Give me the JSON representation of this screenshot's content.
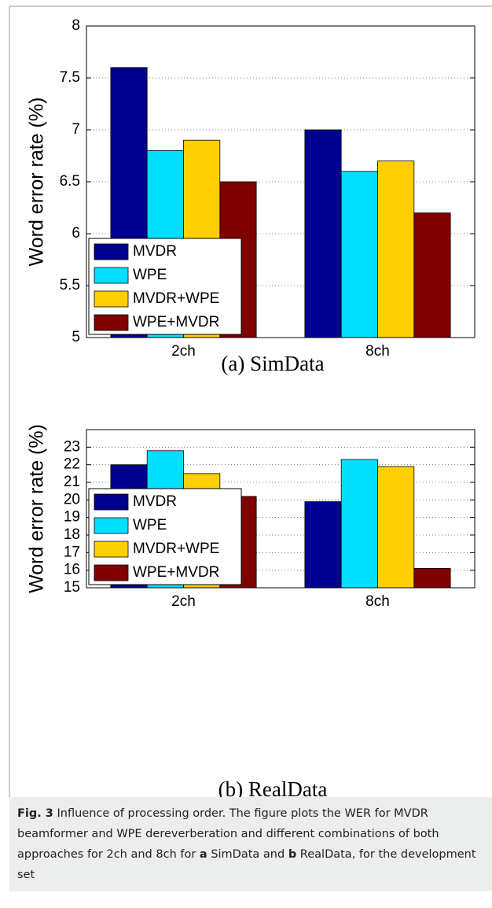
{
  "chart_data": [
    {
      "type": "bar",
      "title": "(a) SimData",
      "ylabel": "Word error rate (%)",
      "categories": [
        "2ch",
        "8ch"
      ],
      "series": [
        {
          "name": "MVDR",
          "color": "#00008f",
          "values": [
            7.6,
            7.0
          ]
        },
        {
          "name": "WPE",
          "color": "#00dfff",
          "values": [
            6.8,
            6.6
          ]
        },
        {
          "name": "MVDR+WPE",
          "color": "#ffcf00",
          "values": [
            6.9,
            6.7
          ]
        },
        {
          "name": "WPE+MVDR",
          "color": "#800000",
          "values": [
            6.5,
            6.2
          ]
        }
      ],
      "ylim": [
        5,
        8
      ],
      "yticks": [
        5,
        5.5,
        6,
        6.5,
        7,
        7.5,
        8
      ],
      "grid": true,
      "legend": "upper left"
    },
    {
      "type": "bar",
      "title": "(b) RealData",
      "ylabel": "Word error rate (%)",
      "categories": [
        "2ch",
        "8ch"
      ],
      "series": [
        {
          "name": "MVDR",
          "color": "#00008f",
          "values": [
            22.0,
            19.9
          ]
        },
        {
          "name": "WPE",
          "color": "#00dfff",
          "values": [
            22.8,
            22.3
          ]
        },
        {
          "name": "MVDR+WPE",
          "color": "#ffcf00",
          "values": [
            21.5,
            21.9
          ]
        },
        {
          "name": "WPE+MVDR",
          "color": "#800000",
          "values": [
            20.2,
            16.1
          ]
        }
      ],
      "ylim": [
        15,
        24
      ],
      "yticks": [
        15,
        16,
        17,
        18,
        19,
        20,
        21,
        22,
        23
      ],
      "grid": true,
      "legend": "upper left"
    }
  ],
  "caption": [
    {
      "text": "Fig. 3",
      "bold": true
    },
    {
      "text": " Influence of processing order. The figure plots the WER for MVDR beamformer and WPE dereverberation and different combinations of both approaches for 2ch and 8ch for ",
      "bold": false
    },
    {
      "text": "a",
      "bold": true
    },
    {
      "text": " SimData and ",
      "bold": false
    },
    {
      "text": "b",
      "bold": true
    },
    {
      "text": " RealData, for the development set",
      "bold": false
    }
  ]
}
